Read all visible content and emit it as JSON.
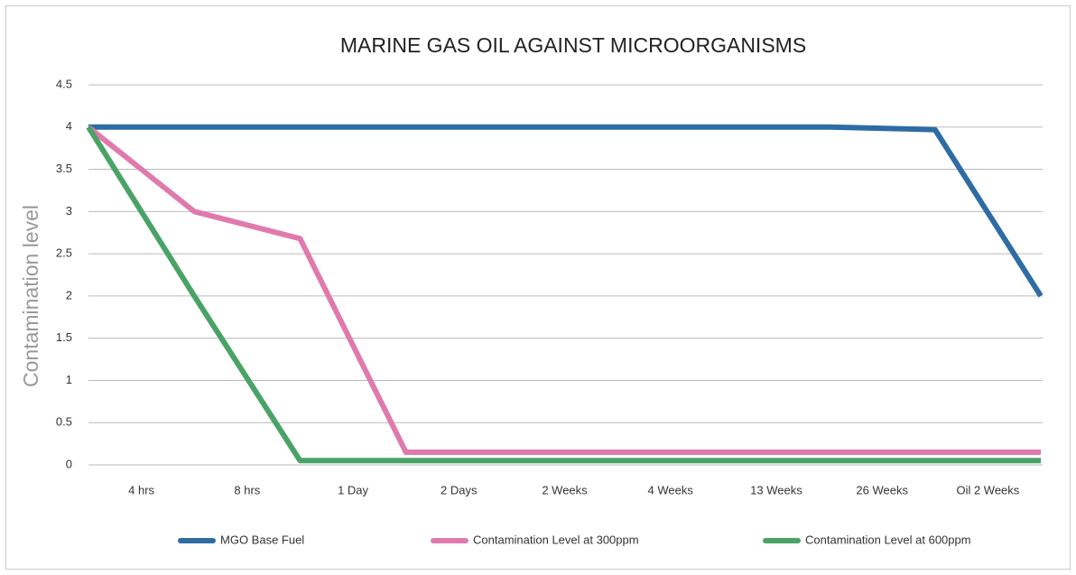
{
  "chart_data": {
    "type": "line",
    "title": "MARINE GAS OIL AGAINST MICROORGANISMS",
    "y_label": "Contamination level",
    "categories": [
      null,
      "4 hrs",
      "8 hrs",
      "1 Day",
      "2 Days",
      "2 Weeks",
      "4 Weeks",
      "13 Weeks",
      "26 Weeks",
      "Oil 2 Weeks"
    ],
    "series": [
      {
        "name": "MGO Base Fuel",
        "color": "#2e6ca4",
        "values": [
          4,
          4,
          4,
          4,
          4,
          4,
          4,
          4,
          3.97,
          2
        ]
      },
      {
        "name": "Contamination Level at 300ppm",
        "color": "#e07aad",
        "values": [
          4,
          3,
          2.68,
          0.15,
          0.15,
          0.15,
          0.15,
          0.15,
          0.15,
          0.15
        ]
      },
      {
        "name": "Contamination Level at 600ppm",
        "color": "#4aa366",
        "values": [
          4,
          2,
          0.05,
          0.05,
          0.05,
          0.05,
          0.05,
          0.05,
          0.05,
          0.05
        ]
      }
    ],
    "ylim": [
      0,
      4.5
    ],
    "yticks": [
      0,
      0.5,
      1,
      1.5,
      2,
      2.5,
      3,
      3.5,
      4,
      4.5
    ],
    "grid": true,
    "legend": "bottom"
  }
}
